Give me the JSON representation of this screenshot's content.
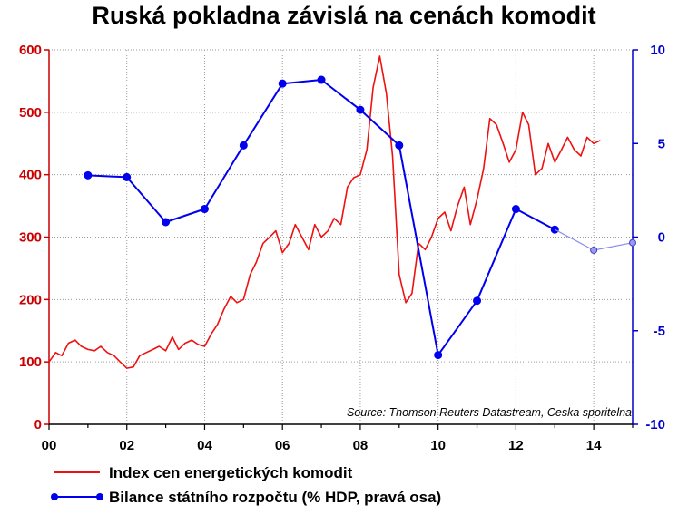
{
  "chart_data": {
    "type": "line",
    "title": "Ruská pokladna závislá na cenách komodit",
    "source": "Source: Thomson Reuters Datastream, Ceska sporitelna",
    "grid": true,
    "legend_placement": "bottom",
    "x_axis": {
      "range": [
        2000,
        2015
      ],
      "ticks": [
        0,
        2,
        4,
        6,
        8,
        10,
        12,
        14
      ],
      "tick_labels": [
        "00",
        "02",
        "04",
        "06",
        "08",
        "10",
        "12",
        "14"
      ]
    },
    "y_left": {
      "range": [
        0,
        600
      ],
      "ticks": [
        0,
        100,
        200,
        300,
        400,
        500,
        600
      ],
      "tick_labels": [
        "0",
        "100",
        "200",
        "300",
        "400",
        "500",
        "600"
      ],
      "color": "#cc0000"
    },
    "y_right": {
      "range": [
        -10,
        10
      ],
      "ticks": [
        -10,
        -5,
        0,
        5,
        10
      ],
      "tick_labels": [
        "-10",
        "-5",
        "0",
        "5",
        "10"
      ],
      "color": "#0000cc"
    },
    "series": [
      {
        "name": "Index cen energetických komodit",
        "axis": "left",
        "color": "#ee1111",
        "x": [
          2000.0,
          2000.17,
          2000.33,
          2000.5,
          2000.67,
          2000.83,
          2001.0,
          2001.17,
          2001.33,
          2001.5,
          2001.67,
          2001.83,
          2002.0,
          2002.17,
          2002.33,
          2002.5,
          2002.67,
          2002.83,
          2003.0,
          2003.17,
          2003.33,
          2003.5,
          2003.67,
          2003.83,
          2004.0,
          2004.17,
          2004.33,
          2004.5,
          2004.67,
          2004.83,
          2005.0,
          2005.17,
          2005.33,
          2005.5,
          2005.67,
          2005.83,
          2006.0,
          2006.17,
          2006.33,
          2006.5,
          2006.67,
          2006.83,
          2007.0,
          2007.17,
          2007.33,
          2007.5,
          2007.67,
          2007.83,
          2008.0,
          2008.17,
          2008.33,
          2008.5,
          2008.67,
          2008.83,
          2009.0,
          2009.17,
          2009.33,
          2009.5,
          2009.67,
          2009.83,
          2010.0,
          2010.17,
          2010.33,
          2010.5,
          2010.67,
          2010.83,
          2011.0,
          2011.17,
          2011.33,
          2011.5,
          2011.67,
          2011.83,
          2012.0,
          2012.17,
          2012.33,
          2012.5,
          2012.67,
          2012.83,
          2013.0,
          2013.17,
          2013.33,
          2013.5,
          2013.67,
          2013.83,
          2014.0,
          2014.17
        ],
        "values": [
          100,
          115,
          110,
          130,
          135,
          125,
          120,
          118,
          125,
          115,
          110,
          100,
          90,
          92,
          110,
          115,
          120,
          125,
          118,
          140,
          120,
          130,
          135,
          128,
          125,
          145,
          160,
          185,
          205,
          195,
          200,
          240,
          260,
          290,
          300,
          310,
          275,
          290,
          320,
          300,
          280,
          320,
          300,
          310,
          330,
          320,
          380,
          395,
          400,
          440,
          540,
          590,
          530,
          430,
          240,
          195,
          210,
          290,
          280,
          300,
          330,
          340,
          310,
          350,
          380,
          320,
          360,
          410,
          490,
          480,
          450,
          420,
          440,
          500,
          480,
          400,
          410,
          450,
          420,
          440,
          460,
          440,
          430,
          460,
          450,
          455
        ]
      },
      {
        "name": "Bilance státního rozpočtu (% HDP, pravá osa)",
        "axis": "right",
        "color": "#0000ee",
        "x": [
          2001,
          2002,
          2003,
          2004,
          2005,
          2006,
          2007,
          2008,
          2009,
          2010,
          2011,
          2012,
          2013
        ],
        "values": [
          3.3,
          3.2,
          0.8,
          1.5,
          4.9,
          8.2,
          8.4,
          6.8,
          4.9,
          -6.3,
          -3.4,
          1.5,
          0.4
        ]
      },
      {
        "name": "",
        "axis": "right",
        "color": "#8a8af0",
        "projected": true,
        "x": [
          2013,
          2014,
          2015
        ],
        "values": [
          0.4,
          -0.7,
          -0.3
        ]
      }
    ]
  }
}
